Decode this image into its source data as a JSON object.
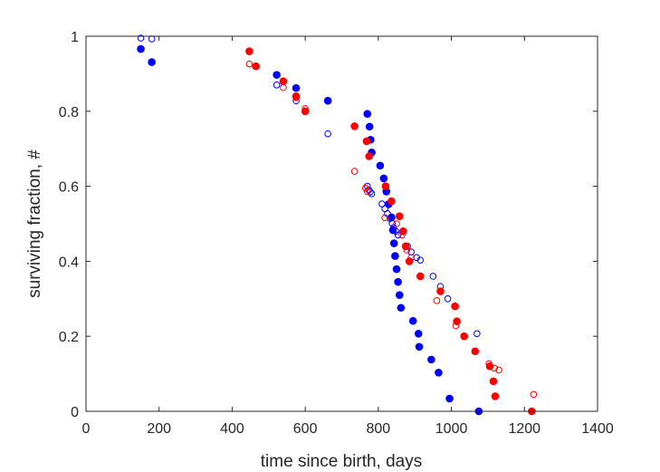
{
  "chart_data": {
    "type": "scatter",
    "title": "",
    "xlabel": "time since birth, days",
    "ylabel": "surviving fraction, #",
    "xlim": [
      0,
      1400
    ],
    "ylim": [
      0,
      1
    ],
    "xticks": [
      0,
      200,
      400,
      600,
      800,
      1000,
      1200,
      1400
    ],
    "yticks": [
      0,
      0.2,
      0.4,
      0.6,
      0.8,
      1
    ],
    "xtick_labels": [
      "0",
      "200",
      "400",
      "600",
      "800",
      "1000",
      "1200",
      "1400"
    ],
    "ytick_labels": [
      "0",
      "0.2",
      "0.4",
      "0.6",
      "0.8",
      "1"
    ],
    "grid": false,
    "box": true,
    "series": [
      {
        "color": "#0000ff",
        "marker": "filled-circle",
        "points": [
          [
            150,
            0.966
          ],
          [
            180,
            0.931
          ],
          [
            522,
            0.897
          ],
          [
            575,
            0.862
          ],
          [
            662,
            0.828
          ],
          [
            770,
            0.793
          ],
          [
            776,
            0.759
          ],
          [
            779,
            0.724
          ],
          [
            782,
            0.69
          ],
          [
            805,
            0.655
          ],
          [
            815,
            0.621
          ],
          [
            822,
            0.586
          ],
          [
            828,
            0.552
          ],
          [
            836,
            0.517
          ],
          [
            840,
            0.483
          ],
          [
            843,
            0.448
          ],
          [
            846,
            0.414
          ],
          [
            850,
            0.379
          ],
          [
            854,
            0.345
          ],
          [
            858,
            0.31
          ],
          [
            862,
            0.276
          ],
          [
            895,
            0.241
          ],
          [
            910,
            0.207
          ],
          [
            912,
            0.172
          ],
          [
            945,
            0.138
          ],
          [
            965,
            0.103
          ],
          [
            995,
            0.034
          ],
          [
            1075,
            0.0
          ]
        ]
      },
      {
        "color": "#0000ff",
        "marker": "open-circle",
        "points": [
          [
            150,
            0.995
          ],
          [
            180,
            0.993
          ],
          [
            522,
            0.87
          ],
          [
            575,
            0.828
          ],
          [
            662,
            0.74
          ],
          [
            770,
            0.6
          ],
          [
            774,
            0.59
          ],
          [
            778,
            0.585
          ],
          [
            782,
            0.58
          ],
          [
            810,
            0.553
          ],
          [
            818,
            0.54
          ],
          [
            825,
            0.527
          ],
          [
            832,
            0.514
          ],
          [
            838,
            0.501
          ],
          [
            842,
            0.49
          ],
          [
            848,
            0.48
          ],
          [
            854,
            0.47
          ],
          [
            880,
            0.44
          ],
          [
            890,
            0.425
          ],
          [
            905,
            0.41
          ],
          [
            915,
            0.403
          ],
          [
            950,
            0.36
          ],
          [
            970,
            0.333
          ],
          [
            990,
            0.3
          ],
          [
            1070,
            0.207
          ]
        ]
      },
      {
        "color": "#ff0000",
        "marker": "filled-circle",
        "points": [
          [
            447,
            0.96
          ],
          [
            465,
            0.92
          ],
          [
            540,
            0.88
          ],
          [
            575,
            0.84
          ],
          [
            600,
            0.8
          ],
          [
            735,
            0.76
          ],
          [
            768,
            0.72
          ],
          [
            775,
            0.68
          ],
          [
            820,
            0.6
          ],
          [
            836,
            0.56
          ],
          [
            858,
            0.52
          ],
          [
            868,
            0.48
          ],
          [
            875,
            0.44
          ],
          [
            885,
            0.4
          ],
          [
            915,
            0.36
          ],
          [
            970,
            0.32
          ],
          [
            1010,
            0.28
          ],
          [
            1015,
            0.24
          ],
          [
            1035,
            0.2
          ],
          [
            1065,
            0.16
          ],
          [
            1105,
            0.12
          ],
          [
            1115,
            0.08
          ],
          [
            1120,
            0.04
          ],
          [
            1220,
            0.0
          ]
        ]
      },
      {
        "color": "#ff0000",
        "marker": "open-circle",
        "points": [
          [
            447,
            0.926
          ],
          [
            540,
            0.863
          ],
          [
            575,
            0.836
          ],
          [
            600,
            0.807
          ],
          [
            735,
            0.64
          ],
          [
            765,
            0.595
          ],
          [
            770,
            0.586
          ],
          [
            818,
            0.516
          ],
          [
            850,
            0.5
          ],
          [
            865,
            0.47
          ],
          [
            878,
            0.43
          ],
          [
            890,
            0.41
          ],
          [
            960,
            0.295
          ],
          [
            1012,
            0.228
          ],
          [
            1103,
            0.127
          ],
          [
            1118,
            0.115
          ],
          [
            1130,
            0.11
          ],
          [
            1225,
            0.045
          ]
        ]
      }
    ]
  }
}
